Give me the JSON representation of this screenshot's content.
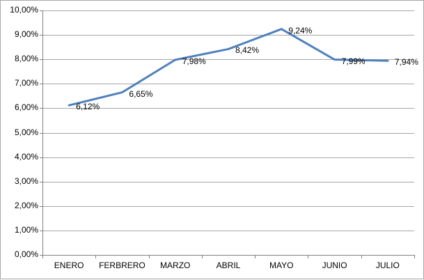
{
  "chart": {
    "background": "#FFFFFF",
    "frame_border_color": "#A6A6A6"
  },
  "chart_data": {
    "type": "line",
    "categories": [
      "ENERO",
      "FERBRERO",
      "MARZO",
      "ABRIL",
      "MAYO",
      "JUNIO",
      "JULIO"
    ],
    "series": [
      {
        "values": [
          6.12,
          6.65,
          7.98,
          8.42,
          9.24,
          7.99,
          7.94
        ]
      }
    ],
    "data_labels": [
      "6,12%",
      "6,65%",
      "7,98%",
      "8,42%",
      "9,24%",
      "7,99%",
      "7,94%"
    ],
    "y_tick_labels": [
      "0,00%",
      "1,00%",
      "2,00%",
      "3,00%",
      "4,00%",
      "5,00%",
      "6,00%",
      "7,00%",
      "8,00%",
      "9,00%",
      "10,00%"
    ],
    "ylim": [
      0,
      10
    ],
    "y_step": 1,
    "grid": true,
    "legend_position": "none",
    "colors": {
      "line": "#4F81BD",
      "gridline": "#A6A6A6",
      "axis": "#808080",
      "text": "#000000"
    }
  }
}
